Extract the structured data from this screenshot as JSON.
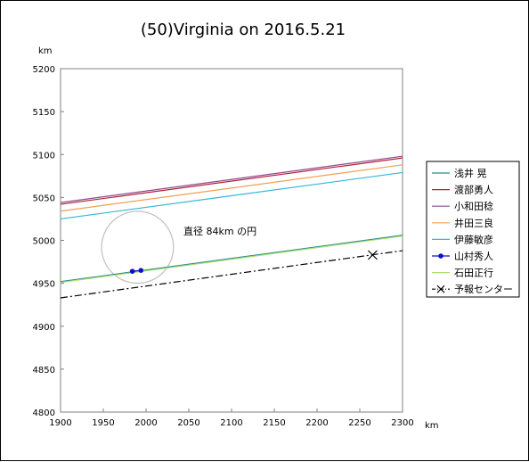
{
  "chart_data": {
    "type": "line",
    "title": "(50)Virginia on 2016.5.21",
    "xunit": "km",
    "yunit": "km",
    "xlim": [
      1900,
      2300
    ],
    "ylim": [
      4800,
      5200
    ],
    "xticks": [
      1900,
      1950,
      2000,
      2050,
      2100,
      2150,
      2200,
      2250,
      2300
    ],
    "yticks": [
      4800,
      4850,
      4900,
      4950,
      5000,
      5050,
      5100,
      5150,
      5200
    ],
    "grid": false,
    "legend_position": "right",
    "series": [
      {
        "name": "浅井 晃",
        "color": "#2e8b8b",
        "x": [
          1900,
          2300
        ],
        "y": [
          4952,
          5006
        ],
        "marker": "none"
      },
      {
        "name": "渡部勇人",
        "color": "#b0203a",
        "x": [
          1900,
          2300
        ],
        "y": [
          5042,
          5096
        ],
        "marker": "none"
      },
      {
        "name": "小和田稔",
        "color": "#8e4a8e",
        "x": [
          1900,
          2300
        ],
        "y": [
          5044,
          5098
        ],
        "marker": "none"
      },
      {
        "name": "井田三良",
        "color": "#f0a050",
        "x": [
          1900,
          2300
        ],
        "y": [
          5034,
          5088
        ],
        "marker": "none"
      },
      {
        "name": "伊藤敏彦",
        "color": "#30b8d8",
        "x": [
          1900,
          2300
        ],
        "y": [
          5025,
          5079
        ],
        "marker": "none"
      },
      {
        "name": "山村秀人",
        "color": "#1010c0",
        "x": [
          1984,
          1994
        ],
        "y": [
          4964,
          4965
        ],
        "marker": "dot"
      },
      {
        "name": "石田正行",
        "color": "#a8e070",
        "x": [
          1900,
          2300
        ],
        "y": [
          4951,
          5005
        ],
        "marker": "none"
      },
      {
        "name": "予報センター",
        "color": "#000000",
        "x": [
          1900,
          2300
        ],
        "y": [
          4933,
          4988
        ],
        "marker": "x",
        "marker_at": [
          2265,
          4983
        ],
        "dash": "dashdot"
      }
    ],
    "circle": {
      "label": "直径 84km の円",
      "cx": 1990,
      "cy": 4992,
      "diameter_km": 84,
      "color": "#c0c0c0"
    }
  }
}
